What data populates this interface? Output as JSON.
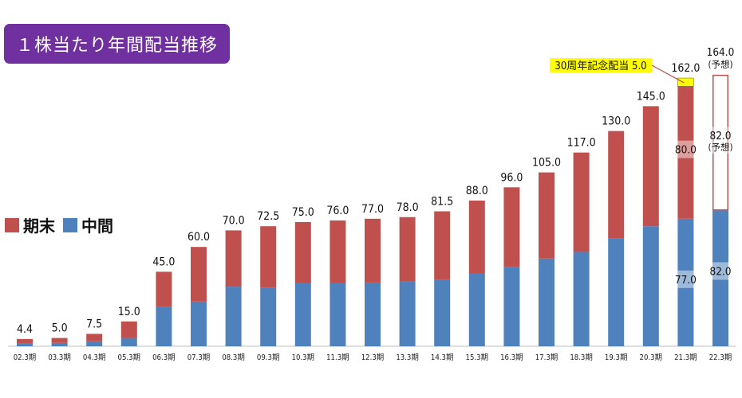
{
  "title": "１株当たり年間配当推移",
  "legend": [
    {
      "name": "期末",
      "color": "#c0504d"
    },
    {
      "name": "中間",
      "color": "#4f81bd"
    }
  ],
  "annotation": "30周年記念配当 5.0",
  "chart_data": {
    "type": "bar",
    "stacked": true,
    "title": "１株当たり年間配当推移",
    "categories": [
      "02.3期",
      "03.3期",
      "04.3期",
      "05.3期",
      "06.3期",
      "07.3期",
      "08.3期",
      "09.3期",
      "10.3期",
      "11.3期",
      "12.3期",
      "13.3期",
      "14.3期",
      "15.3期",
      "16.3期",
      "17.3期",
      "18.3期",
      "19.3期",
      "20.3期",
      "21.3期",
      "22.3期"
    ],
    "totals": [
      "4.4",
      "5.0",
      "7.5",
      "15.0",
      "45.0",
      "60.0",
      "70.0",
      "72.5",
      "75.0",
      "76.0",
      "77.0",
      "78.0",
      "81.5",
      "88.0",
      "96.0",
      "105.0",
      "117.0",
      "130.0",
      "145.0",
      "162.0",
      "164.0"
    ],
    "total_notes": [
      "",
      "",
      "",
      "",
      "",
      "",
      "",
      "",
      "",
      "",
      "",
      "",
      "",
      "",
      "",
      "",
      "",
      "",
      "",
      "",
      "(予想)"
    ],
    "series": [
      {
        "name": "中間",
        "color": "#4f81bd",
        "values": [
          1.5,
          2.0,
          3.0,
          5.0,
          24.0,
          27.0,
          36.0,
          35.5,
          38.0,
          38.0,
          38.5,
          39.0,
          40.0,
          44.0,
          48.0,
          53.0,
          57.0,
          65.0,
          72.5,
          77.0,
          82.0
        ]
      },
      {
        "name": "期末",
        "color": "#c0504d",
        "values": [
          2.9,
          3.0,
          4.5,
          10.0,
          21.0,
          33.0,
          34.0,
          37.0,
          37.0,
          38.0,
          38.5,
          39.0,
          41.5,
          44.0,
          48.0,
          52.0,
          60.0,
          65.0,
          72.5,
          80.0,
          82.0
        ]
      },
      {
        "name": "30周年記念配当",
        "color": "#ffff00",
        "values": [
          0,
          0,
          0,
          0,
          0,
          0,
          0,
          0,
          0,
          0,
          0,
          0,
          0,
          0,
          0,
          0,
          0,
          0,
          0,
          5.0,
          0
        ]
      }
    ],
    "forecast_index": 20,
    "inner_labels": [
      {
        "index": 19,
        "series": "中間",
        "text": "77.0"
      },
      {
        "index": 19,
        "series": "期末",
        "text": "80.0"
      },
      {
        "index": 20,
        "series": "中間",
        "text": "82.0"
      },
      {
        "index": 20,
        "series": "期末",
        "text": "82.0",
        "note": "(予想)"
      }
    ],
    "ylim": [
      0,
      170
    ]
  }
}
